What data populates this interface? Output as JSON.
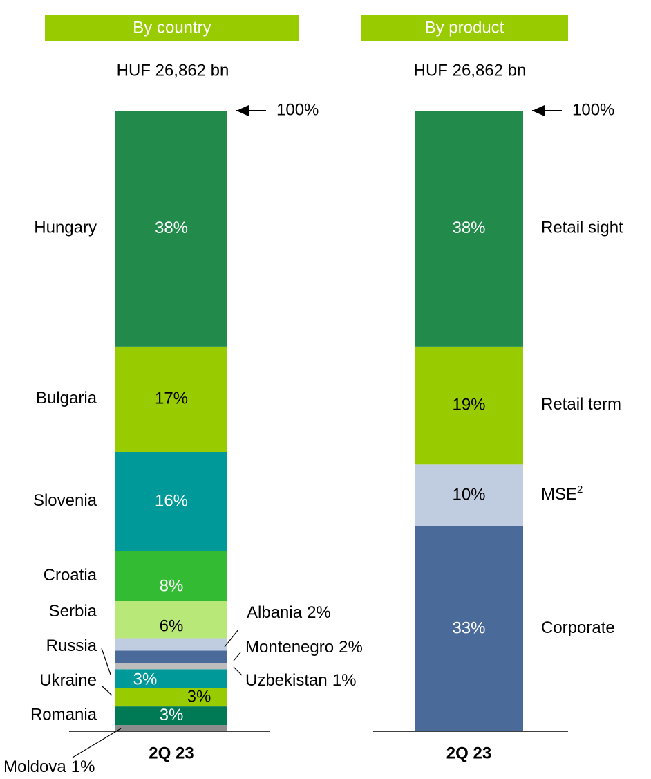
{
  "chart_data": [
    {
      "type": "bar",
      "title": "By country",
      "subtitle": "HUF 26,862 bn",
      "categories": [
        "2Q 23"
      ],
      "ylim": [
        0,
        100
      ],
      "total": {
        "value": 100,
        "label": "100%"
      },
      "series": [
        {
          "name": "Moldova",
          "color": "#8c8c8c",
          "values": [
            1
          ],
          "value_labels": [
            "1%"
          ]
        },
        {
          "name": "Romania",
          "color": "#007a55",
          "values": [
            3
          ],
          "value_labels": [
            "3%"
          ]
        },
        {
          "name": "Ukraine",
          "color": "#99cc00",
          "values": [
            3
          ],
          "value_labels": [
            "3%"
          ]
        },
        {
          "name": "Russia",
          "color": "#009999",
          "values": [
            3
          ],
          "value_labels": [
            "3%"
          ]
        },
        {
          "name": "Uzbekistan",
          "color": "#bdbdbd",
          "values": [
            1
          ],
          "value_labels": [
            "1%"
          ]
        },
        {
          "name": "Montenegro",
          "color": "#4a6b9a",
          "values": [
            2
          ],
          "value_labels": [
            "2%"
          ]
        },
        {
          "name": "Albania",
          "color": "#c0cce0",
          "values": [
            2
          ],
          "value_labels": [
            "2%"
          ]
        },
        {
          "name": "Serbia",
          "color": "#b8e878",
          "values": [
            6
          ],
          "value_labels": [
            "6%"
          ]
        },
        {
          "name": "Croatia",
          "color": "#33bb33",
          "values": [
            8
          ],
          "value_labels": [
            "8%"
          ]
        },
        {
          "name": "Slovenia",
          "color": "#009999",
          "values": [
            16
          ],
          "value_labels": [
            "16%"
          ]
        },
        {
          "name": "Bulgaria",
          "color": "#99cc00",
          "values": [
            17
          ],
          "value_labels": [
            "17%"
          ]
        },
        {
          "name": "Hungary",
          "color": "#228b4b",
          "values": [
            38
          ],
          "value_labels": [
            "38%"
          ]
        }
      ]
    },
    {
      "type": "bar",
      "title": "By product",
      "subtitle": "HUF 26,862 bn",
      "categories": [
        "2Q 23"
      ],
      "ylim": [
        0,
        100
      ],
      "total": {
        "value": 100,
        "label": "100%"
      },
      "series": [
        {
          "name": "Corporate",
          "color": "#4a6b9a",
          "values": [
            33
          ],
          "value_labels": [
            "33%"
          ]
        },
        {
          "name": "MSE",
          "footnote": "2",
          "color": "#c0cce0",
          "values": [
            10
          ],
          "value_labels": [
            "10%"
          ]
        },
        {
          "name": "Retail term",
          "color": "#99cc00",
          "values": [
            19
          ],
          "value_labels": [
            "19%"
          ]
        },
        {
          "name": "Retail sight",
          "color": "#228b4b",
          "values": [
            38
          ],
          "value_labels": [
            "38%"
          ]
        }
      ]
    }
  ]
}
